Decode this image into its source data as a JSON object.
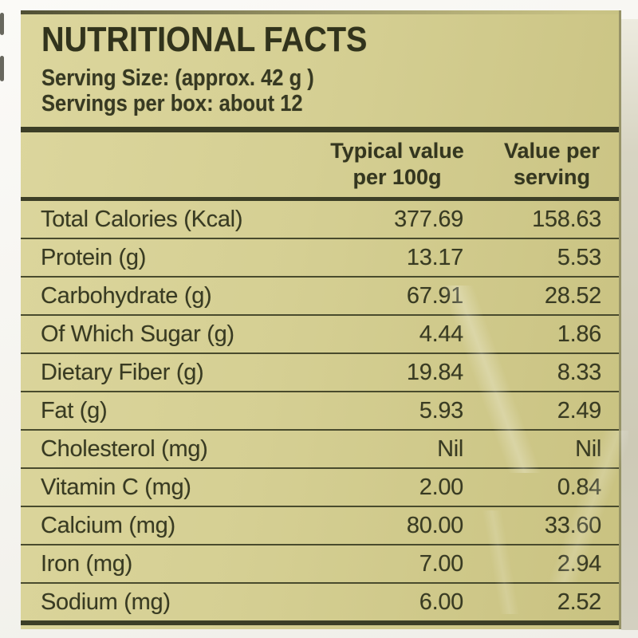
{
  "panel": {
    "title": "NUTRITIONAL FACTS",
    "serving_size": "Serving Size: (approx. 42 g )",
    "servings_per_box": "Servings per box: about 12"
  },
  "table": {
    "columns": {
      "typical_line1": "Typical value",
      "typical_line2": "per 100g",
      "serving_line1": "Value per",
      "serving_line2": "serving"
    },
    "rows": [
      {
        "name": "Total Calories (Kcal)",
        "per_100g": "377.69",
        "per_serving": "158.63"
      },
      {
        "name": "Protein (g)",
        "per_100g": "13.17",
        "per_serving": "5.53"
      },
      {
        "name": "Carbohydrate (g)",
        "per_100g": "67.91",
        "per_serving": "28.52"
      },
      {
        "name": "Of Which Sugar (g)",
        "per_100g": "4.44",
        "per_serving": "1.86"
      },
      {
        "name": "Dietary Fiber (g)",
        "per_100g": "19.84",
        "per_serving": "8.33"
      },
      {
        "name": "Fat (g)",
        "per_100g": "5.93",
        "per_serving": "2.49"
      },
      {
        "name": "Cholesterol (mg)",
        "per_100g": "Nil",
        "per_serving": "Nil"
      },
      {
        "name": "Vitamin C (mg)",
        "per_100g": "2.00",
        "per_serving": "0.84"
      },
      {
        "name": "Calcium (mg)",
        "per_100g": "80.00",
        "per_serving": "33.60"
      },
      {
        "name": "Iron (mg)",
        "per_100g": "7.00",
        "per_serving": "2.94"
      },
      {
        "name": "Sodium (mg)",
        "per_100g": "6.00",
        "per_serving": "2.52"
      }
    ]
  },
  "colors": {
    "label_background": "#d4ce92",
    "text_dark": "#383a22",
    "rule_dark": "#3c3e26",
    "page_margin": "#f6f5f1"
  }
}
